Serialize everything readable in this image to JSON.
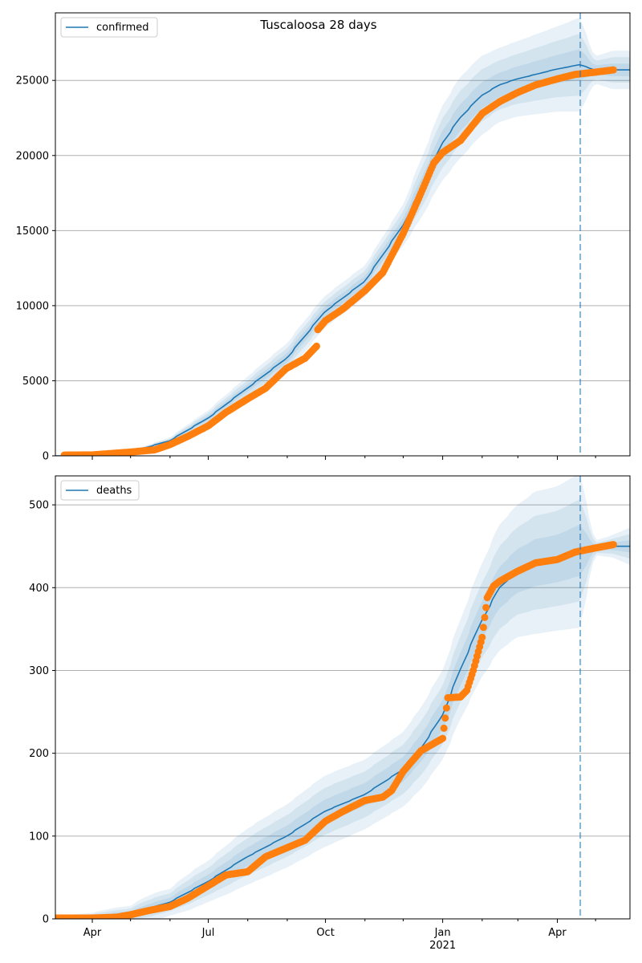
{
  "chart_data": [
    {
      "type": "line",
      "title": "Tuscaloosa 28 days",
      "legend": {
        "entries": [
          "confirmed"
        ],
        "placement": "upper-left"
      },
      "ylim": [
        0,
        29500
      ],
      "yticks": [
        0,
        5000,
        10000,
        15000,
        20000,
        25000
      ],
      "yticklabels": [
        "0",
        "5000",
        "10000",
        "15000",
        "20000",
        "25000"
      ],
      "grid": "horizontal",
      "forecast_start": "2021-04-19",
      "model": {
        "x": [
          "2020-03-10",
          "2020-04-01",
          "2020-05-01",
          "2020-06-01",
          "2020-07-01",
          "2020-08-01",
          "2020-09-01",
          "2020-10-01",
          "2020-11-01",
          "2020-12-01",
          "2020-12-15",
          "2021-01-01",
          "2021-01-15",
          "2021-02-01",
          "2021-02-15",
          "2021-03-01",
          "2021-04-01",
          "2021-04-19",
          "2021-05-01",
          "2021-05-15"
        ],
        "y": [
          0,
          50,
          250,
          1000,
          2500,
          4500,
          6500,
          9600,
          11600,
          15300,
          17700,
          20800,
          22500,
          24000,
          24700,
          25100,
          25750,
          26050,
          25700,
          25700
        ],
        "band_pct": [
          0.25,
          0.25,
          0.25,
          0.22,
          0.2,
          0.17,
          0.15,
          0.11,
          0.09,
          0.09,
          0.11,
          0.12,
          0.12,
          0.11,
          0.1,
          0.1,
          0.11,
          0.12,
          0.035,
          0.05
        ]
      },
      "series": [
        {
          "name": "confirmed",
          "x": [
            "2020-03-10",
            "2020-04-01",
            "2020-04-15",
            "2020-05-01",
            "2020-05-20",
            "2020-06-01",
            "2020-06-15",
            "2020-07-01",
            "2020-07-15",
            "2020-08-01",
            "2020-08-15",
            "2020-08-31",
            "2020-09-15",
            "2020-09-24",
            "2020-09-25",
            "2020-10-01",
            "2020-10-15",
            "2020-11-01",
            "2020-11-15",
            "2020-12-01",
            "2020-12-15",
            "2020-12-25",
            "2021-01-01",
            "2021-01-15",
            "2021-02-01",
            "2021-02-15",
            "2021-03-01",
            "2021-03-15",
            "2021-04-01",
            "2021-04-15",
            "2021-05-01",
            "2021-05-15"
          ],
          "y": [
            50,
            60,
            150,
            250,
            400,
            750,
            1300,
            2000,
            2900,
            3800,
            4500,
            5800,
            6500,
            7300,
            8400,
            9000,
            9800,
            11000,
            12200,
            14800,
            17500,
            19500,
            20200,
            21000,
            22800,
            23600,
            24200,
            24700,
            25100,
            25400,
            25550,
            25700
          ]
        }
      ]
    },
    {
      "type": "line",
      "title": "",
      "legend": {
        "entries": [
          "deaths"
        ],
        "placement": "upper-left"
      },
      "xlim": [
        "2020-03-03",
        "2021-05-28"
      ],
      "xticks": [
        "2020-04-01",
        "2020-07-01",
        "2020-10-01",
        "2021-01-01",
        "2021-04-01"
      ],
      "xticklabels": [
        "Apr",
        "Jul",
        "Oct",
        "Jan",
        "Apr"
      ],
      "xticklabel_year": "2021",
      "ylim": [
        0,
        535
      ],
      "yticks": [
        0,
        100,
        200,
        300,
        400,
        500
      ],
      "yticklabels": [
        "0",
        "100",
        "200",
        "300",
        "400",
        "500"
      ],
      "grid": "horizontal",
      "forecast_start": "2021-04-19",
      "model": {
        "x": [
          "2020-03-03",
          "2020-04-01",
          "2020-05-01",
          "2020-06-01",
          "2020-07-01",
          "2020-08-01",
          "2020-09-01",
          "2020-10-01",
          "2020-11-01",
          "2020-12-01",
          "2020-12-15",
          "2021-01-01",
          "2021-01-15",
          "2021-02-01",
          "2021-02-15",
          "2021-03-01",
          "2021-03-15",
          "2021-04-01",
          "2021-04-19",
          "2021-05-01",
          "2021-05-15",
          "2021-05-28"
        ],
        "y": [
          1,
          2,
          6,
          20,
          45,
          75,
          100,
          130,
          150,
          180,
          205,
          245,
          300,
          360,
          400,
          420,
          430,
          435,
          445,
          448,
          450,
          450
        ],
        "band_pct": [
          2.6,
          2.6,
          1.6,
          0.8,
          0.55,
          0.45,
          0.38,
          0.33,
          0.28,
          0.25,
          0.24,
          0.22,
          0.2,
          0.19,
          0.19,
          0.19,
          0.2,
          0.2,
          0.21,
          0.02,
          0.03,
          0.05
        ]
      },
      "series": [
        {
          "name": "deaths",
          "x": [
            "2020-03-03",
            "2020-04-01",
            "2020-04-20",
            "2020-05-01",
            "2020-05-15",
            "2020-06-01",
            "2020-06-15",
            "2020-07-01",
            "2020-07-15",
            "2020-08-01",
            "2020-08-15",
            "2020-09-01",
            "2020-09-15",
            "2020-10-01",
            "2020-10-15",
            "2020-11-01",
            "2020-11-15",
            "2020-11-22",
            "2020-12-01",
            "2020-12-15",
            "2021-01-01",
            "2021-01-05",
            "2021-01-15",
            "2021-01-20",
            "2021-01-25",
            "2021-02-01",
            "2021-02-05",
            "2021-02-10",
            "2021-02-15",
            "2021-03-01",
            "2021-03-15",
            "2021-04-01",
            "2021-04-15",
            "2021-05-01",
            "2021-05-15"
          ],
          "y": [
            1,
            1,
            2,
            5,
            10,
            15,
            25,
            40,
            53,
            57,
            75,
            86,
            95,
            118,
            130,
            143,
            147,
            155,
            178,
            203,
            218,
            267,
            268,
            276,
            300,
            340,
            388,
            402,
            408,
            420,
            430,
            434,
            443,
            448,
            452
          ]
        }
      ]
    }
  ]
}
